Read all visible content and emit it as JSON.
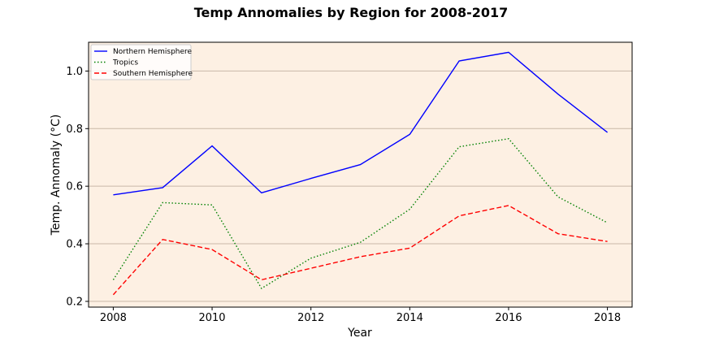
{
  "chart_data": {
    "type": "line",
    "title": "Temp Annomalies by Region for 2008-2017",
    "xlabel": "Year",
    "ylabel": "Temp. Annomaly (°C)",
    "xlim": [
      2007.5,
      2018.5
    ],
    "ylim": [
      0.18,
      1.1
    ],
    "xticks": [
      2008,
      2010,
      2012,
      2014,
      2016,
      2018
    ],
    "yticks": [
      0.2,
      0.4,
      0.6,
      0.8,
      1.0
    ],
    "grid": "horizontal",
    "legend_position": "top-left",
    "background_color": "#fdf0e3",
    "x": [
      2008,
      2009,
      2010,
      2011,
      2012,
      2013,
      2014,
      2015,
      2016,
      2017,
      2018
    ],
    "series": [
      {
        "name": "Northern Hemisphere",
        "color": "#0000ff",
        "style": "solid",
        "values": [
          0.57,
          0.595,
          0.74,
          0.577,
          0.627,
          0.675,
          0.78,
          1.035,
          1.065,
          0.92,
          0.787
        ]
      },
      {
        "name": "Tropics",
        "color": "#008000",
        "style": "dotted",
        "values": [
          0.275,
          0.543,
          0.535,
          0.245,
          0.35,
          0.405,
          0.52,
          0.737,
          0.765,
          0.563,
          0.473
        ]
      },
      {
        "name": "Southern Hemisphere",
        "color": "#ff0000",
        "style": "dashed",
        "values": [
          0.223,
          0.415,
          0.38,
          0.275,
          0.315,
          0.355,
          0.385,
          0.497,
          0.533,
          0.435,
          0.408
        ]
      }
    ]
  }
}
